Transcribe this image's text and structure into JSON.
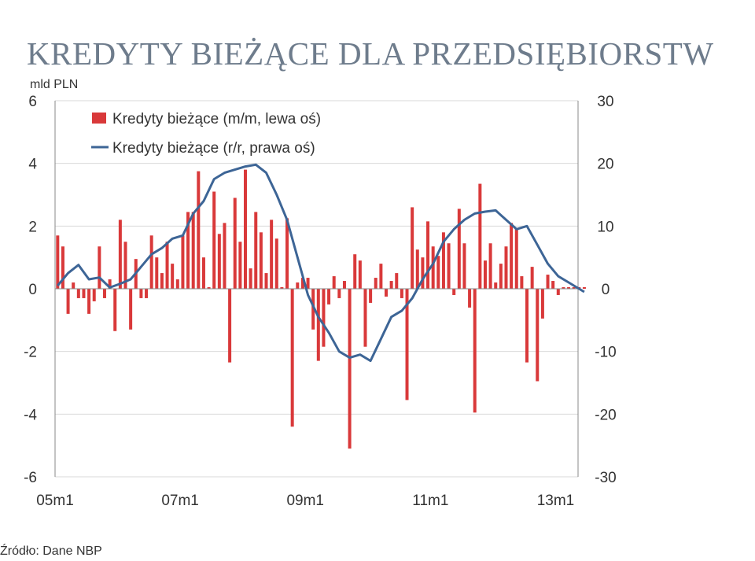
{
  "page": {
    "title": "KREDYTY BIEŻĄCE DLA PRZEDSIĘBIORSTW",
    "source": "Źródło: Dane NBP"
  },
  "chart_data": {
    "type": "bar",
    "unit_label": "mld PLN",
    "x_tick_labels": [
      "05m1",
      "07m1",
      "09m1",
      "11m1",
      "13m1"
    ],
    "y_left": {
      "min": -6,
      "max": 6,
      "ticks": [
        -6,
        -4,
        -2,
        0,
        2,
        4,
        6
      ]
    },
    "y_right": {
      "min": -30,
      "max": 30,
      "ticks": [
        -30,
        -20,
        -10,
        0,
        10,
        20,
        30
      ]
    },
    "grid": true,
    "legend_position": "top-left",
    "colors": {
      "bars": "#d9393a",
      "line": "#3d6596",
      "grid": "#d9d9d9",
      "axis": "#888888",
      "text": "#333333"
    },
    "series": [
      {
        "name": "Kredyty bieżące (m/m, lewa oś)",
        "type": "bar",
        "axis": "left",
        "months": [
          "2005-01",
          "2005-02",
          "2005-03",
          "2005-04",
          "2005-05",
          "2005-06",
          "2005-07",
          "2005-08",
          "2005-09",
          "2005-10",
          "2005-11",
          "2005-12",
          "2006-01",
          "2006-02",
          "2006-03",
          "2006-04",
          "2006-05",
          "2006-06",
          "2006-07",
          "2006-08",
          "2006-09",
          "2006-10",
          "2006-11",
          "2006-12",
          "2007-01",
          "2007-02",
          "2007-03",
          "2007-04",
          "2007-05",
          "2007-06",
          "2007-07",
          "2007-08",
          "2007-09",
          "2007-10",
          "2007-11",
          "2007-12",
          "2008-01",
          "2008-02",
          "2008-03",
          "2008-04",
          "2008-05",
          "2008-06",
          "2008-07",
          "2008-08",
          "2008-09",
          "2008-10",
          "2008-11",
          "2008-12",
          "2009-01",
          "2009-02",
          "2009-03",
          "2009-04",
          "2009-05",
          "2009-06",
          "2009-07",
          "2009-08",
          "2009-09",
          "2009-10",
          "2009-11",
          "2009-12",
          "2010-01",
          "2010-02",
          "2010-03",
          "2010-04",
          "2010-05",
          "2010-06",
          "2010-07",
          "2010-08",
          "2010-09",
          "2010-10",
          "2010-11",
          "2010-12",
          "2011-01",
          "2011-02",
          "2011-03",
          "2011-04",
          "2011-05",
          "2011-06",
          "2011-07",
          "2011-08",
          "2011-09",
          "2011-10",
          "2011-11",
          "2011-12",
          "2012-01",
          "2012-02",
          "2012-03",
          "2012-04",
          "2012-05",
          "2012-06",
          "2012-07",
          "2012-08",
          "2012-09",
          "2012-10",
          "2012-11",
          "2012-12",
          "2013-01",
          "2013-02",
          "2013-03",
          "2013-04",
          "2013-05",
          "2013-06"
        ],
        "values": [
          1.7,
          1.35,
          -0.8,
          0.2,
          -0.3,
          -0.3,
          -0.8,
          -0.4,
          1.35,
          -0.3,
          0.3,
          -1.35,
          2.2,
          1.5,
          -1.3,
          0.95,
          -0.3,
          -0.3,
          1.7,
          1.0,
          0.5,
          1.5,
          0.8,
          0.3,
          1.7,
          2.45,
          2.45,
          3.75,
          1.0,
          0.05,
          3.1,
          1.75,
          2.1,
          -2.35,
          2.9,
          1.5,
          3.8,
          0.65,
          2.45,
          1.8,
          0.5,
          2.2,
          1.6,
          0.05,
          2.25,
          -4.4,
          0.2,
          0.35,
          0.35,
          -1.3,
          -2.3,
          -1.85,
          -0.5,
          0.4,
          -0.3,
          0.25,
          -5.1,
          1.1,
          0.9,
          -1.85,
          -0.45,
          0.35,
          0.8,
          -0.25,
          0.25,
          0.5,
          -0.3,
          -3.55,
          2.6,
          1.25,
          1.0,
          2.15,
          1.35,
          1.05,
          1.8,
          1.45,
          -0.2,
          2.55,
          1.45,
          -0.6,
          -3.95,
          3.35,
          0.9,
          1.45,
          0.2,
          0.8,
          1.35,
          2.1,
          1.9,
          0.4,
          -2.35,
          0.7,
          -2.95,
          -0.95,
          0.45,
          0.25,
          -0.2,
          0.05,
          0.05,
          0.05,
          0.05,
          0.05
        ]
      },
      {
        "name": "Kredyty bieżące (r/r, prawa oś)",
        "type": "line",
        "axis": "right",
        "months": [
          "2005-01",
          "2005-03",
          "2005-05",
          "2005-07",
          "2005-09",
          "2005-11",
          "2006-01",
          "2006-03",
          "2006-05",
          "2006-07",
          "2006-09",
          "2006-11",
          "2007-01",
          "2007-03",
          "2007-05",
          "2007-07",
          "2007-09",
          "2007-11",
          "2008-01",
          "2008-03",
          "2008-05",
          "2008-07",
          "2008-09",
          "2008-11",
          "2009-01",
          "2009-03",
          "2009-05",
          "2009-07",
          "2009-09",
          "2009-11",
          "2010-01",
          "2010-03",
          "2010-05",
          "2010-07",
          "2010-09",
          "2010-11",
          "2011-01",
          "2011-03",
          "2011-05",
          "2011-07",
          "2011-09",
          "2011-11",
          "2012-01",
          "2012-03",
          "2012-05",
          "2012-07",
          "2012-09",
          "2012-11",
          "2013-01",
          "2013-03",
          "2013-06"
        ],
        "values": [
          0.5,
          2.5,
          3.8,
          1.5,
          1.8,
          0.2,
          0.8,
          1.5,
          3.5,
          5.5,
          6.5,
          8.0,
          8.5,
          12.0,
          14.0,
          17.5,
          18.5,
          19.0,
          19.5,
          19.8,
          18.5,
          15.0,
          11.0,
          5.0,
          -1.0,
          -4.5,
          -7.0,
          -10.0,
          -11.0,
          -10.5,
          -11.5,
          -8.0,
          -4.5,
          -3.5,
          -1.5,
          1.5,
          4.0,
          7.5,
          9.5,
          11.0,
          12.0,
          12.3,
          12.5,
          11.0,
          9.5,
          10.0,
          7.0,
          4.0,
          2.0,
          1.0,
          -0.5
        ]
      }
    ]
  }
}
